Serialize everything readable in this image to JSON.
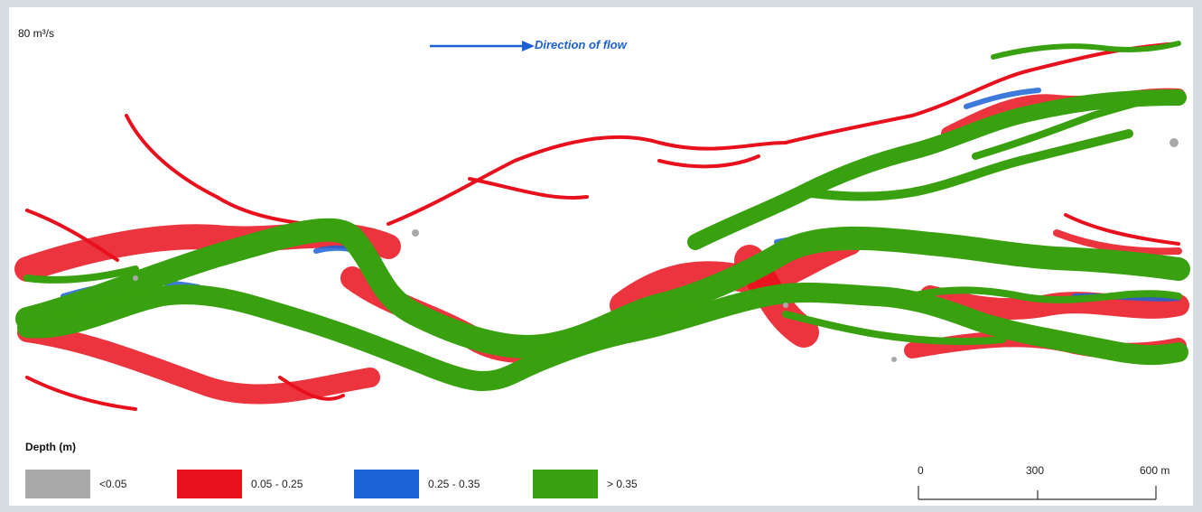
{
  "discharge_label": "80 m³/s",
  "flow_direction_label": "Direction of flow",
  "legend": {
    "title": "Depth (m)",
    "items": [
      {
        "label": "<0.05",
        "color": "#a9a9a9"
      },
      {
        "label": "0.05 - 0.25",
        "color": "#e8101c"
      },
      {
        "label": "0.25 - 0.35",
        "color": "#1b63d6"
      },
      {
        "label": "> 0.35",
        "color": "#39a10f"
      }
    ]
  },
  "scale_bar": {
    "labels": [
      "0",
      "300",
      "600  m"
    ]
  },
  "colors": {
    "background": "#d6dde2",
    "arrow": "#1c5fd1",
    "deep_channel": "#39a10f",
    "shallow": "#e8101c",
    "mid": "#1b63d6",
    "very_shallow": "#a9a9a9"
  }
}
